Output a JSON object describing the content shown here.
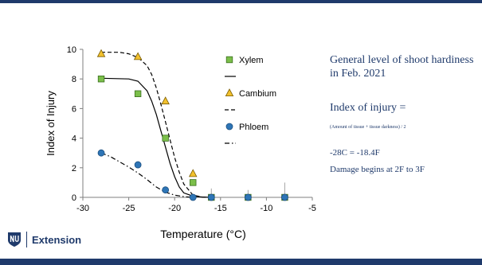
{
  "slide": {
    "notes": [
      "General level of shoot hardiness in Feb. 2021",
      "Index of injury =",
      "(Amount of tissue + tissue darkness) / 2",
      "-28C = -18.4F",
      "Damage begins at 2F to 3F"
    ],
    "logo_text": "Extension",
    "colors": {
      "brand": "#1f3a6b"
    }
  },
  "chart_data": {
    "type": "scatter",
    "xlabel": "Temperature (°C)",
    "ylabel": "Index of Injury",
    "xlim": [
      -30,
      -5
    ],
    "ylim": [
      0,
      10
    ],
    "xticks": [
      -30,
      -25,
      -20,
      -15,
      -10,
      -5
    ],
    "yticks": [
      0,
      2,
      4,
      6,
      8,
      10
    ],
    "grid": false,
    "legend_position": "right",
    "series": [
      {
        "name": "Xylem",
        "marker": "square",
        "color": "#7bbf4a",
        "x": [
          -28,
          -24,
          -21,
          -18,
          -16,
          -12,
          -8
        ],
        "y": [
          8,
          7,
          4,
          1,
          0,
          0,
          0
        ],
        "error": [
          0,
          0,
          0,
          0,
          0.6,
          0.5,
          1.0
        ]
      },
      {
        "name": "Cambium",
        "marker": "triangle",
        "color": "#f2c12e",
        "x": [
          -28,
          -24,
          -21,
          -18
        ],
        "y": [
          9.7,
          9.5,
          6.5,
          1.6
        ]
      },
      {
        "name": "Phloem",
        "marker": "circle",
        "color": "#2e75b6",
        "x": [
          -28,
          -24,
          -21,
          -18,
          -16,
          -12,
          -8
        ],
        "y": [
          3,
          2.2,
          0.5,
          0,
          0,
          0,
          0
        ]
      }
    ],
    "fit_lines": [
      {
        "for": "Xylem",
        "style": "solid",
        "points": [
          [
            -28,
            8.05
          ],
          [
            -25,
            8.0
          ],
          [
            -24,
            7.85
          ],
          [
            -23,
            7.2
          ],
          [
            -22.5,
            6.5
          ],
          [
            -22,
            5.6
          ],
          [
            -21.5,
            4.5
          ],
          [
            -21,
            3.4
          ],
          [
            -20.5,
            2.3
          ],
          [
            -20,
            1.4
          ],
          [
            -19.5,
            0.7
          ],
          [
            -19,
            0.3
          ],
          [
            -18,
            0.08
          ],
          [
            -17,
            0.02
          ],
          [
            -16,
            0
          ]
        ]
      },
      {
        "for": "Cambium",
        "style": "dashed",
        "points": [
          [
            -28,
            9.8
          ],
          [
            -26,
            9.8
          ],
          [
            -25,
            9.7
          ],
          [
            -24,
            9.45
          ],
          [
            -23,
            8.9
          ],
          [
            -22.5,
            8.3
          ],
          [
            -22,
            7.4
          ],
          [
            -21.5,
            6.3
          ],
          [
            -21,
            5.1
          ],
          [
            -20.5,
            3.9
          ],
          [
            -20,
            2.7
          ],
          [
            -19.5,
            1.7
          ],
          [
            -19,
            0.9
          ],
          [
            -18,
            0.15
          ],
          [
            -17,
            0.02
          ],
          [
            -16,
            0
          ]
        ]
      },
      {
        "for": "Phloem",
        "style": "dashdot",
        "points": [
          [
            -28,
            3.0
          ],
          [
            -27,
            2.75
          ],
          [
            -26,
            2.4
          ],
          [
            -25,
            2.05
          ],
          [
            -24,
            1.65
          ],
          [
            -23,
            1.2
          ],
          [
            -22,
            0.7
          ],
          [
            -21,
            0.35
          ],
          [
            -20,
            0.15
          ],
          [
            -19,
            0.05
          ],
          [
            -18,
            0
          ]
        ]
      }
    ]
  }
}
